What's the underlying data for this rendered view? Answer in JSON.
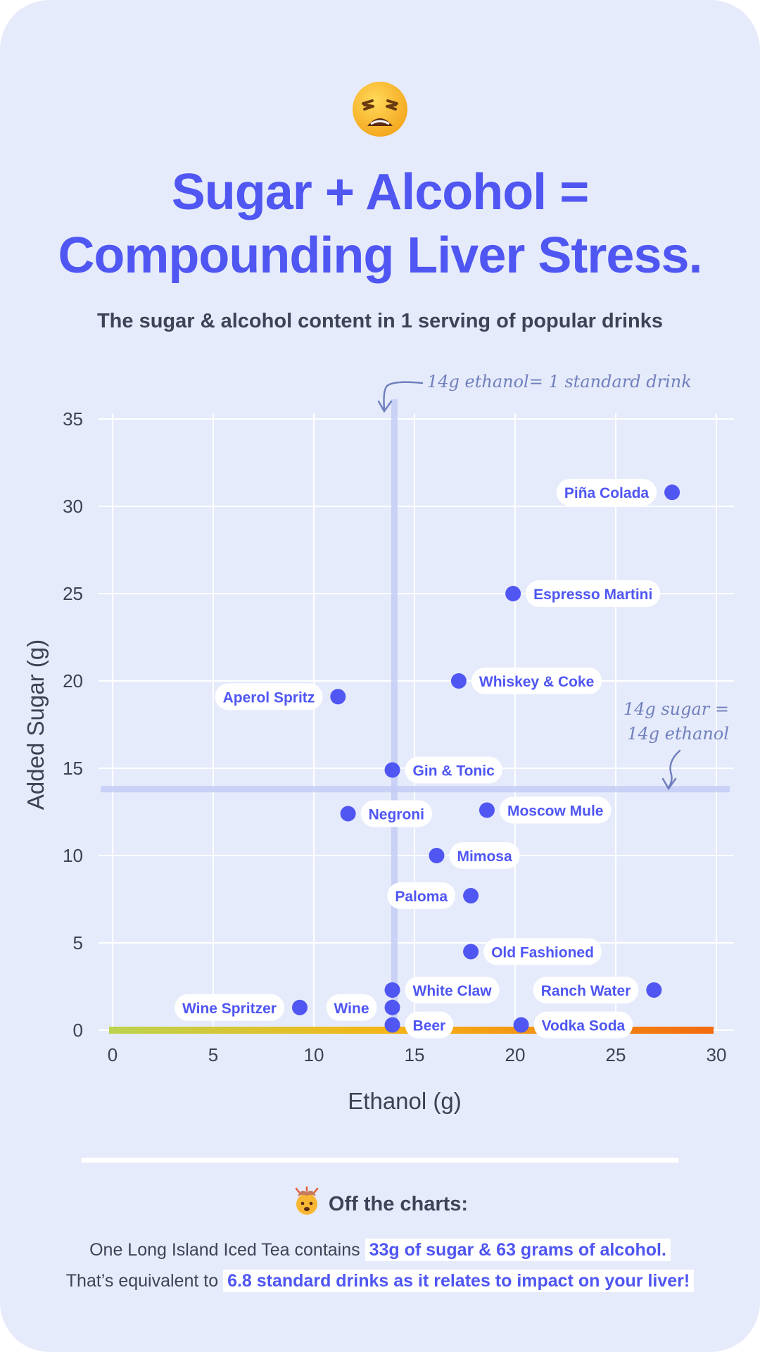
{
  "header": {
    "emoji": "weary-face",
    "title_line1": "Sugar + Alcohol =",
    "title_line2": "Compounding Liver Stress.",
    "subtitle": "The sugar & alcohol content in 1 serving of popular drinks"
  },
  "chart_data": {
    "type": "scatter",
    "title": "The sugar & alcohol content in 1 serving of popular drinks",
    "xlabel": "Ethanol (g)",
    "ylabel": "Added Sugar (g)",
    "xlim": [
      0,
      30
    ],
    "ylim": [
      0,
      35
    ],
    "xticks": [
      0,
      5,
      10,
      15,
      20,
      25,
      30
    ],
    "yticks": [
      0,
      5,
      10,
      15,
      20,
      25,
      30,
      35
    ],
    "grid": true,
    "points": [
      {
        "name": "Piña Colada",
        "x": 27.8,
        "y": 30.8,
        "label_side": "left"
      },
      {
        "name": "Espresso Martini",
        "x": 19.9,
        "y": 25.0,
        "label_side": "right"
      },
      {
        "name": "Whiskey & Coke",
        "x": 17.2,
        "y": 20.0,
        "label_side": "right"
      },
      {
        "name": "Aperol Spritz",
        "x": 11.2,
        "y": 19.1,
        "label_side": "left"
      },
      {
        "name": "Gin & Tonic",
        "x": 13.9,
        "y": 14.9,
        "label_side": "right"
      },
      {
        "name": "Negroni",
        "x": 11.7,
        "y": 12.4,
        "label_side": "right"
      },
      {
        "name": "Moscow Mule",
        "x": 18.6,
        "y": 12.6,
        "label_side": "right"
      },
      {
        "name": "Mimosa",
        "x": 16.1,
        "y": 10.0,
        "label_side": "right"
      },
      {
        "name": "Paloma",
        "x": 17.8,
        "y": 7.7,
        "label_side": "left"
      },
      {
        "name": "Old Fashioned",
        "x": 17.8,
        "y": 4.5,
        "label_side": "right"
      },
      {
        "name": "White Claw",
        "x": 13.9,
        "y": 2.3,
        "label_side": "right"
      },
      {
        "name": "Ranch Water",
        "x": 26.9,
        "y": 2.3,
        "label_side": "left"
      },
      {
        "name": "Wine Spritzer",
        "x": 9.3,
        "y": 1.3,
        "label_side": "left"
      },
      {
        "name": "Wine",
        "x": 13.9,
        "y": 1.3,
        "label_side": "left"
      },
      {
        "name": "Beer",
        "x": 13.9,
        "y": 0.3,
        "label_side": "right"
      },
      {
        "name": "Vodka Soda",
        "x": 20.3,
        "y": 0.3,
        "label_side": "right"
      }
    ],
    "reference_lines": [
      {
        "axis": "x",
        "value": 14,
        "annotation": "14g ethanol= 1 standard drink"
      },
      {
        "axis": "y",
        "value": 13.8,
        "annotation_line1": "14g sugar =",
        "annotation_line2": "14g ethanol"
      }
    ]
  },
  "footer": {
    "emoji": "exploding-head",
    "heading": "Off the charts:",
    "line1_text": "One Long Island Iced Tea contains ",
    "line1_highlight": "33g of sugar & 63 grams of alcohol.",
    "line2_text": "That’s equivalent to ",
    "line2_highlight": "6.8 standard drinks as it relates to impact on your liver!"
  },
  "colors": {
    "accent": "#4f56f2",
    "text_dark": "#3f4357",
    "background": "#e6ebfb",
    "gradient_start": "#f36b10",
    "gradient_mid": "#f4b616",
    "gradient_end": "#bcd34f",
    "reference_line": "#c4cdf6"
  }
}
